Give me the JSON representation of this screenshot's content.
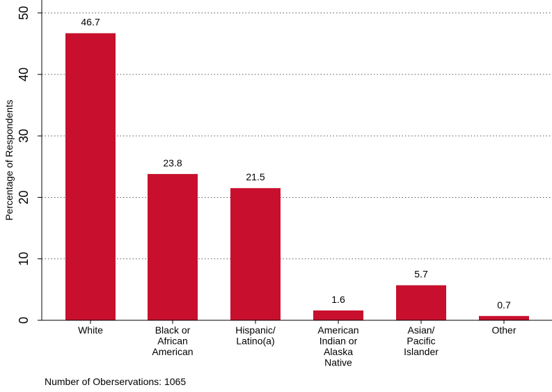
{
  "chart_data": {
    "type": "bar",
    "title": "",
    "xlabel": "",
    "ylabel": "Percentage of Respondents",
    "ylim": [
      0,
      52
    ],
    "yticks": [
      0,
      10,
      20,
      30,
      40,
      50
    ],
    "grid": true,
    "categories": [
      [
        "White"
      ],
      [
        "Black or",
        "African",
        "American"
      ],
      [
        "Hispanic/",
        "Latino(a)"
      ],
      [
        "American",
        "Indian or",
        "Alaska",
        "Native"
      ],
      [
        "Asian/",
        "Pacific",
        "Islander"
      ],
      [
        "Other"
      ]
    ],
    "values": [
      46.7,
      23.8,
      21.5,
      1.6,
      5.7,
      0.7
    ],
    "value_labels": [
      "46.7",
      "23.8",
      "21.5",
      "1.6",
      "5.7",
      "0.7"
    ],
    "bar_color": "#c8102e"
  },
  "footnote": "Number of Oberservations: 1065"
}
